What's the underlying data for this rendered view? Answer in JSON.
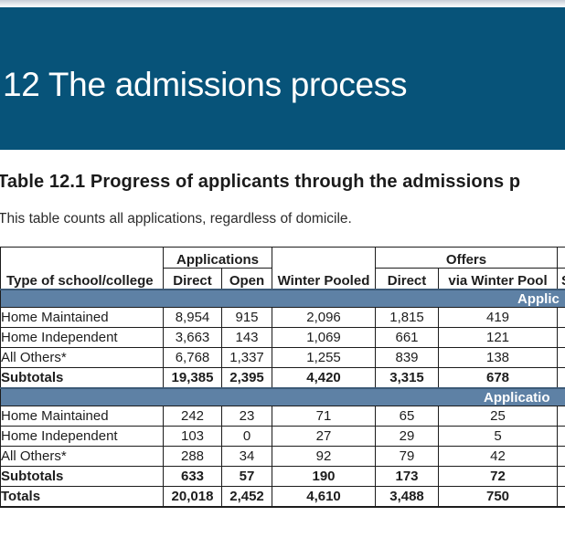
{
  "page": {
    "section_title": "12 The admissions process",
    "table_heading": "Table 12.1 Progress of applicants through the admissions p",
    "table_note": "This table counts all applications, regardless of domicile."
  },
  "colors": {
    "header_blue": "#075379",
    "band_blue": "#5e81a5",
    "band_top": "#3c5a77",
    "table_border": "#1c1c1c"
  },
  "table": {
    "group_headers": {
      "applications": "Applications",
      "offers": "Offers"
    },
    "column_headers": {
      "type": "Type of school/college",
      "direct_applications": "Direct",
      "open": "Open",
      "winter_pooled": "Winter Pooled",
      "direct_offers": "Direct",
      "via_winter_pool": "via Winter Pool",
      "cut_column_fragment": "S"
    },
    "band1_label": "Applic",
    "band2_label": "Applicatio",
    "rows_block1": [
      {
        "label": "Home Maintained",
        "values": [
          "8,954",
          "915",
          "2,096",
          "1,815",
          "419"
        ],
        "bold": false
      },
      {
        "label": "Home Independent",
        "values": [
          "3,663",
          "143",
          "1,069",
          "661",
          "121"
        ],
        "bold": false
      },
      {
        "label": "All Others*",
        "values": [
          "6,768",
          "1,337",
          "1,255",
          "839",
          "138"
        ],
        "bold": false
      },
      {
        "label": "Subtotals",
        "values": [
          "19,385",
          "2,395",
          "4,420",
          "3,315",
          "678"
        ],
        "bold": true
      }
    ],
    "rows_block2": [
      {
        "label": "Home Maintained",
        "values": [
          "242",
          "23",
          "71",
          "65",
          "25"
        ],
        "bold": false
      },
      {
        "label": "Home Independent",
        "values": [
          "103",
          "0",
          "27",
          "29",
          "5"
        ],
        "bold": false
      },
      {
        "label": "All Others*",
        "values": [
          "288",
          "34",
          "92",
          "79",
          "42"
        ],
        "bold": false
      },
      {
        "label": "Subtotals",
        "values": [
          "633",
          "57",
          "190",
          "173",
          "72"
        ],
        "bold": true
      }
    ],
    "totals_row": {
      "label": "Totals",
      "values": [
        "20,018",
        "2,452",
        "4,610",
        "3,488",
        "750"
      ]
    }
  }
}
